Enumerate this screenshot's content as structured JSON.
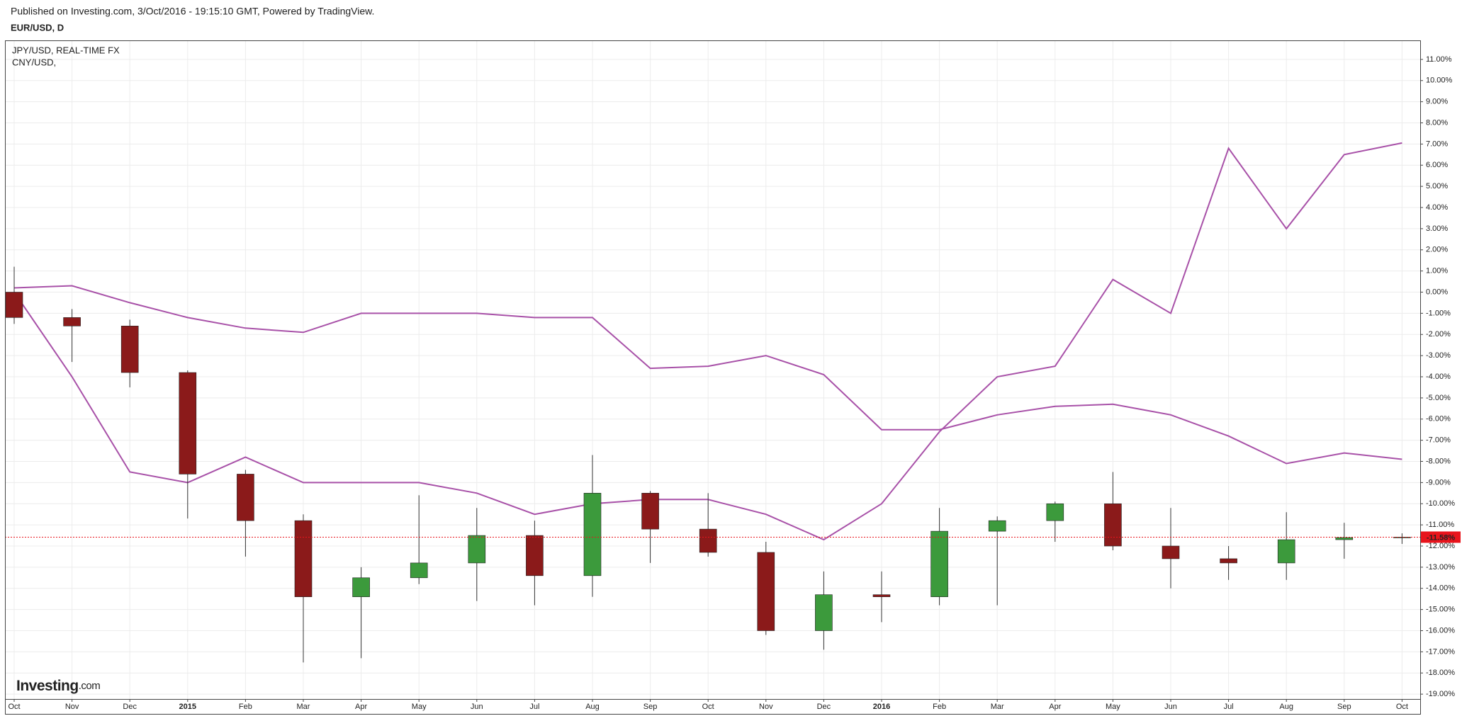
{
  "chart_data": {
    "type": "candlestick",
    "subtitle": "Published on Investing.com, 3/Oct/2016 - 19:15:10 GMT, Powered by TradingView.",
    "title": "EUR/USD, D",
    "logo_main": "Investing",
    "logo_suffix": ".com",
    "x": [
      "2014-10",
      "2014-11",
      "2014-12",
      "2015-01",
      "2015-02",
      "2015-03",
      "2015-04",
      "2015-05",
      "2015-06",
      "2015-07",
      "2015-08",
      "2015-09",
      "2015-10",
      "2015-11",
      "2015-12",
      "2016-01",
      "2016-02",
      "2016-03",
      "2016-04",
      "2016-05",
      "2016-06",
      "2016-07",
      "2016-08",
      "2016-09",
      "2016-10"
    ],
    "open": [
      0,
      -1.2,
      -1.6,
      -3.8,
      -8.6,
      -10.8,
      -14.4,
      -13.5,
      -12.8,
      -11.5,
      -13.4,
      -9.5,
      -11.2,
      -12.3,
      -16.0,
      -14.3,
      -14.4,
      -11.3,
      -10.8,
      -10.0,
      -12.0,
      -12.6,
      -12.8,
      -11.7,
      -11.6
    ],
    "high": [
      1.2,
      -0.8,
      -1.3,
      -3.7,
      -8.4,
      -10.5,
      -13.0,
      -9.6,
      -10.2,
      -10.8,
      -7.7,
      -9.4,
      -9.5,
      -11.8,
      -13.2,
      -13.2,
      -10.2,
      -10.6,
      -9.9,
      -8.5,
      -10.2,
      -12.0,
      -10.4,
      -10.9,
      -11.4
    ],
    "low": [
      -1.5,
      -3.3,
      -4.5,
      -10.7,
      -12.5,
      -17.5,
      -17.3,
      -13.8,
      -14.6,
      -14.8,
      -14.4,
      -12.8,
      -12.5,
      -16.2,
      -16.9,
      -15.6,
      -14.8,
      -14.8,
      -11.8,
      -12.2,
      -14.0,
      -13.6,
      -13.6,
      -12.6,
      -11.9
    ],
    "close": [
      -1.2,
      -1.6,
      -3.8,
      -8.6,
      -10.8,
      -14.4,
      -13.5,
      -12.8,
      -11.5,
      -13.4,
      -9.5,
      -11.2,
      -12.3,
      -16.0,
      -14.3,
      -14.4,
      -11.3,
      -10.8,
      -10.0,
      -12.0,
      -12.6,
      -12.8,
      -11.7,
      -11.6,
      -11.58
    ],
    "up_color": "#3c9a3c",
    "down_color": "#8b1a1a",
    "last_value": -11.58,
    "last_label": "-11.58%",
    "last_color": "#e8141c",
    "series": [
      {
        "name": "JPY/USD, REAL-TIME FX",
        "color": "#a851a8",
        "values": [
          0.0,
          -4.0,
          -8.5,
          -9.0,
          -7.8,
          -9.0,
          -9.0,
          -9.0,
          -9.5,
          -10.5,
          -10.0,
          -9.8,
          -9.8,
          -10.5,
          -11.7,
          -10.0,
          -6.6,
          -4.0,
          -3.5,
          0.6,
          -1.0,
          6.8,
          3.0,
          6.5,
          7.05
        ]
      },
      {
        "name": "CNY/USD,",
        "color": "#a851a8",
        "values": [
          0.2,
          0.3,
          -0.5,
          -1.2,
          -1.7,
          -1.9,
          -1.0,
          -1.0,
          -1.0,
          -1.2,
          -1.2,
          -3.6,
          -3.5,
          -3.0,
          -3.9,
          -6.5,
          -6.5,
          -5.8,
          -5.4,
          -5.3,
          -5.8,
          -6.8,
          -8.1,
          -7.6,
          -7.9
        ]
      }
    ],
    "grid": true,
    "xlim": [
      "2014-10",
      "2016-10"
    ],
    "xticks": [
      {
        "value": "2014-10",
        "label": "Oct"
      },
      {
        "value": "2014-11",
        "label": "Nov"
      },
      {
        "value": "2014-12",
        "label": "Dec"
      },
      {
        "value": "2015-01",
        "label": "2015"
      },
      {
        "value": "2015-02",
        "label": "Feb"
      },
      {
        "value": "2015-03",
        "label": "Mar"
      },
      {
        "value": "2015-04",
        "label": "Apr"
      },
      {
        "value": "2015-05",
        "label": "May"
      },
      {
        "value": "2015-06",
        "label": "Jun"
      },
      {
        "value": "2015-07",
        "label": "Jul"
      },
      {
        "value": "2015-08",
        "label": "Aug"
      },
      {
        "value": "2015-09",
        "label": "Sep"
      },
      {
        "value": "2015-10",
        "label": "Oct"
      },
      {
        "value": "2015-11",
        "label": "Nov"
      },
      {
        "value": "2015-12",
        "label": "Dec"
      },
      {
        "value": "2016-01",
        "label": "2016"
      },
      {
        "value": "2016-02",
        "label": "Feb"
      },
      {
        "value": "2016-03",
        "label": "Mar"
      },
      {
        "value": "2016-04",
        "label": "Apr"
      },
      {
        "value": "2016-05",
        "label": "May"
      },
      {
        "value": "2016-06",
        "label": "Jun"
      },
      {
        "value": "2016-07",
        "label": "Jul"
      },
      {
        "value": "2016-08",
        "label": "Aug"
      },
      {
        "value": "2016-09",
        "label": "Sep"
      },
      {
        "value": "2016-10",
        "label": "Oct"
      }
    ],
    "ylim": [
      -19.23,
      11.9
    ],
    "yticks": [
      {
        "value": -19,
        "label": "-19.00%"
      },
      {
        "value": -18,
        "label": "-18.00%"
      },
      {
        "value": -17,
        "label": "-17.00%"
      },
      {
        "value": -16,
        "label": "-16.00%"
      },
      {
        "value": -15,
        "label": "-15.00%"
      },
      {
        "value": -14,
        "label": "-14.00%"
      },
      {
        "value": -13,
        "label": "-13.00%"
      },
      {
        "value": -12,
        "label": "-12.00%"
      },
      {
        "value": -11,
        "label": "-11.00%"
      },
      {
        "value": -10,
        "label": "-10.00%"
      },
      {
        "value": -9,
        "label": "-9.00%"
      },
      {
        "value": -8,
        "label": "-8.00%"
      },
      {
        "value": -7,
        "label": "-7.00%"
      },
      {
        "value": -6,
        "label": "-6.00%"
      },
      {
        "value": -5,
        "label": "-5.00%"
      },
      {
        "value": -4,
        "label": "-4.00%"
      },
      {
        "value": -3,
        "label": "-3.00%"
      },
      {
        "value": -2,
        "label": "-2.00%"
      },
      {
        "value": -1,
        "label": "-1.00%"
      },
      {
        "value": 0,
        "label": "0.00%"
      },
      {
        "value": 1,
        "label": "1.00%"
      },
      {
        "value": 2,
        "label": "2.00%"
      },
      {
        "value": 3,
        "label": "3.00%"
      },
      {
        "value": 4,
        "label": "4.00%"
      },
      {
        "value": 5,
        "label": "5.00%"
      },
      {
        "value": 6,
        "label": "6.00%"
      },
      {
        "value": 7,
        "label": "7.00%"
      },
      {
        "value": 8,
        "label": "8.00%"
      },
      {
        "value": 9,
        "label": "9.00%"
      },
      {
        "value": 10,
        "label": "10.00%"
      },
      {
        "value": 11,
        "label": "11.00%"
      }
    ]
  }
}
